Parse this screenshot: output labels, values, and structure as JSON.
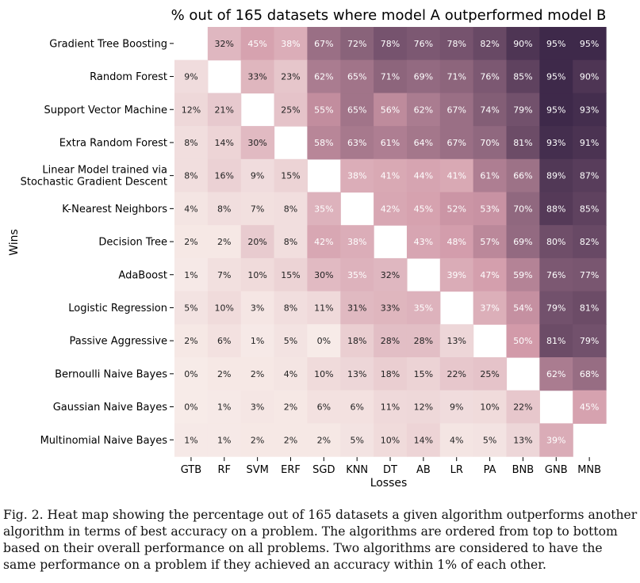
{
  "chart_data": {
    "type": "heatmap",
    "title": "% out of 165 datasets where model A outperformed model B",
    "xlabel": "Losses",
    "ylabel": "Wins",
    "rows": [
      "Gradient Tree Boosting",
      "Random Forest",
      "Support Vector Machine",
      "Extra Random Forest",
      "Linear Model trained via Stochastic Gradient Descent",
      "K-Nearest Neighbors",
      "Decision Tree",
      "AdaBoost",
      "Logistic Regression",
      "Passive Aggressive",
      "Bernoulli Naive Bayes",
      "Gaussian Naive Bayes",
      "Multinomial Naive Bayes"
    ],
    "row_label_lines": {
      "4": [
        "Linear Model trained via",
        "Stochastic Gradient Descent"
      ]
    },
    "columns": [
      "GTB",
      "RF",
      "SVM",
      "ERF",
      "SGD",
      "KNN",
      "DT",
      "AB",
      "LR",
      "PA",
      "BNB",
      "GNB",
      "MNB"
    ],
    "values": [
      [
        null,
        32,
        45,
        38,
        67,
        72,
        78,
        76,
        78,
        82,
        90,
        95,
        95
      ],
      [
        9,
        null,
        33,
        23,
        62,
        65,
        71,
        69,
        71,
        76,
        85,
        95,
        90
      ],
      [
        12,
        21,
        null,
        25,
        55,
        65,
        56,
        62,
        67,
        74,
        79,
        95,
        93
      ],
      [
        8,
        14,
        30,
        null,
        58,
        63,
        61,
        64,
        67,
        70,
        81,
        93,
        91
      ],
      [
        8,
        16,
        9,
        15,
        null,
        38,
        41,
        44,
        41,
        61,
        66,
        89,
        87
      ],
      [
        4,
        8,
        7,
        8,
        35,
        null,
        42,
        45,
        52,
        53,
        70,
        88,
        85
      ],
      [
        2,
        2,
        20,
        8,
        42,
        38,
        null,
        43,
        48,
        57,
        69,
        80,
        82
      ],
      [
        1,
        7,
        10,
        15,
        30,
        35,
        32,
        null,
        39,
        47,
        59,
        76,
        77
      ],
      [
        5,
        10,
        3,
        8,
        11,
        31,
        33,
        35,
        null,
        37,
        54,
        79,
        81
      ],
      [
        2,
        6,
        1,
        5,
        0,
        18,
        28,
        28,
        13,
        null,
        50,
        81,
        79
      ],
      [
        0,
        2,
        2,
        4,
        10,
        13,
        18,
        15,
        22,
        25,
        null,
        62,
        68
      ],
      [
        0,
        1,
        3,
        2,
        6,
        6,
        11,
        12,
        9,
        10,
        22,
        null,
        45
      ],
      [
        1,
        1,
        2,
        2,
        2,
        5,
        10,
        14,
        4,
        5,
        13,
        39,
        null
      ]
    ],
    "value_suffix": "%",
    "colors": {
      "low": "#f7ebe8",
      "mid": "#d29aa9",
      "high": "#2d1c3f"
    },
    "grid": false,
    "legend": "none"
  },
  "caption": "Fig. 2.   Heat map showing the percentage out of 165 datasets a given algorithm outperforms another algorithm in terms of best accuracy on a problem. The algorithms are ordered from top to bottom based on their overall performance on all problems. Two algorithms are considered to have the same performance on a problem if they achieved an accuracy within 1% of each other."
}
